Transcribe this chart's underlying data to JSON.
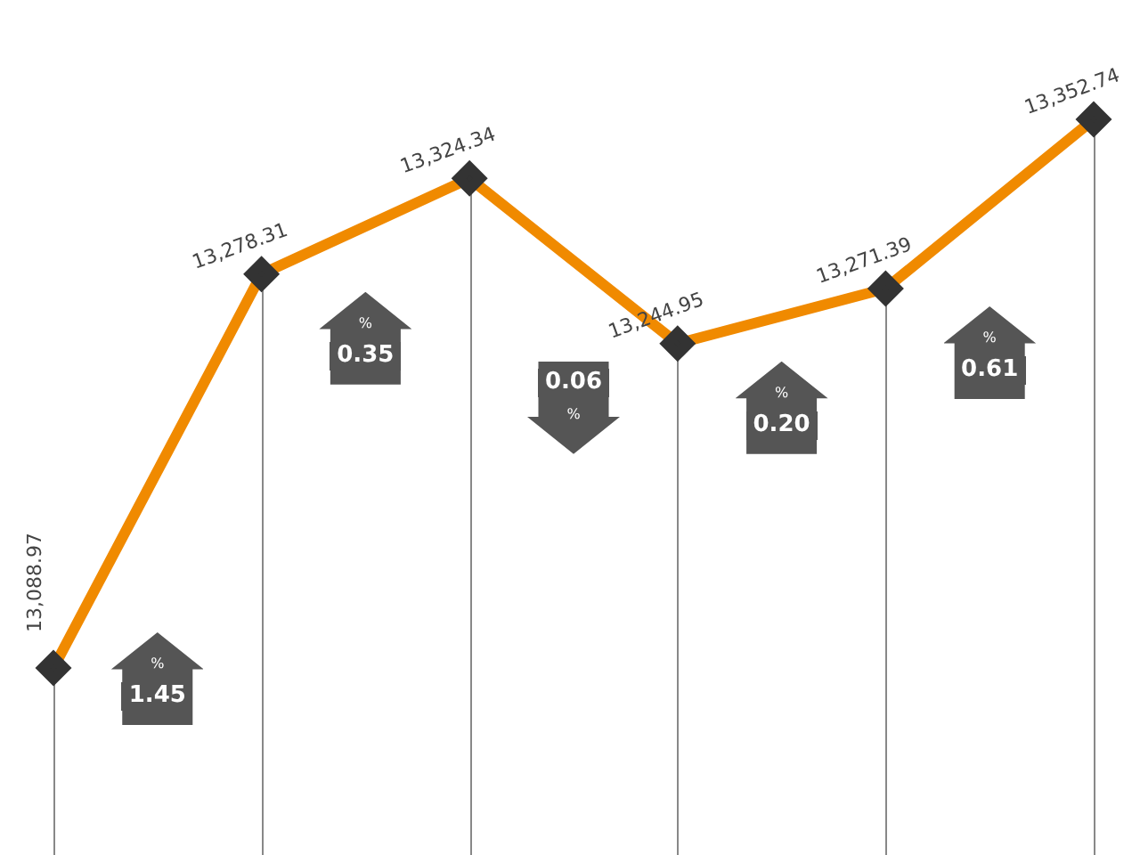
{
  "chart_data": {
    "type": "line",
    "categories": [
      null,
      null,
      null,
      null,
      null,
      null
    ],
    "series": [
      {
        "color": "#f08a00",
        "values": [
          13088.97,
          13278.31,
          13324.34,
          13244.95,
          13271.39,
          13352.74
        ],
        "value_labels": [
          "13,088.97",
          "13,278.31",
          "13,324.34",
          "13,244.95",
          "13,271.39",
          "13,352.74"
        ]
      }
    ],
    "annotations": [
      "% 1.45",
      "% 0.35",
      "% 0.06",
      "% 0.20",
      "% 0.61"
    ],
    "marker": "diamond",
    "grid": "x",
    "legend": false,
    "tick_labels": false
  }
}
